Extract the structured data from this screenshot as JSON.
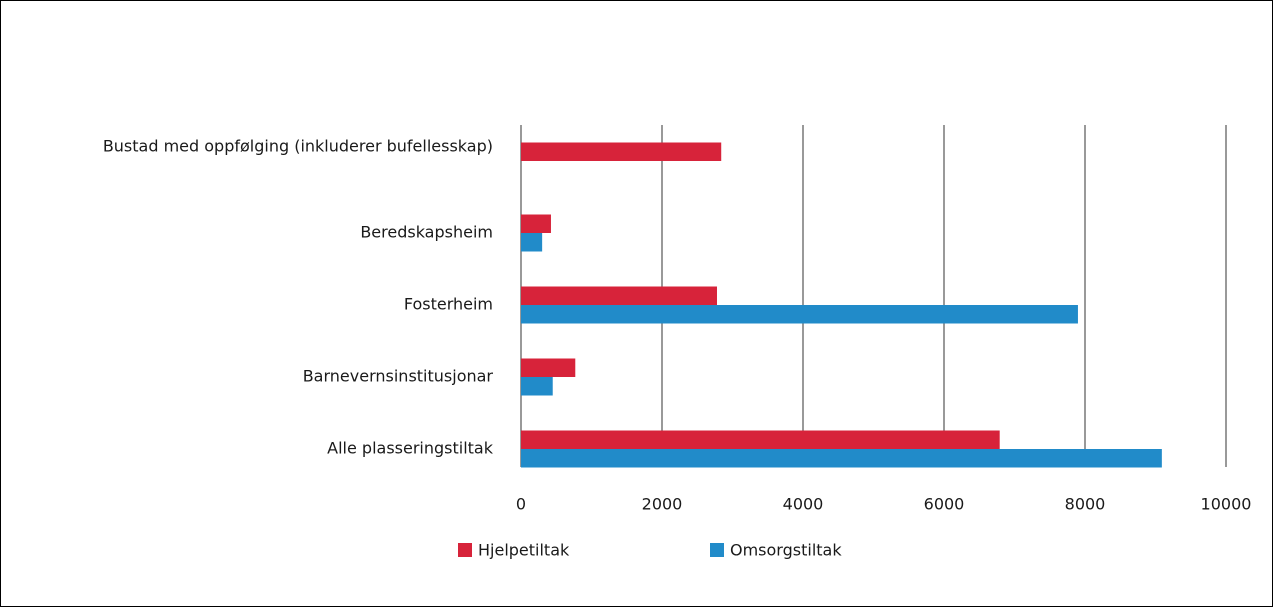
{
  "chart_data": {
    "type": "bar",
    "orientation": "horizontal",
    "categories": [
      "Bustad med oppfølging (inkluderer bufellesskap)",
      "Beredskapsheim",
      "Fosterheim",
      "Barnevernsinstitusjonar",
      "Alle plasseringstiltak"
    ],
    "series": [
      {
        "name": "Hjelpetiltak",
        "color": "#d7233a",
        "values": [
          2840,
          425,
          2780,
          770,
          6790
        ]
      },
      {
        "name": "Omsorgstiltak",
        "color": "#218bc9",
        "values": [
          null,
          300,
          7900,
          450,
          9090
        ]
      }
    ],
    "xlim": [
      0,
      10000
    ],
    "xticks": [
      0,
      2000,
      4000,
      6000,
      8000,
      10000
    ],
    "grid": true,
    "legend": "bottom"
  }
}
